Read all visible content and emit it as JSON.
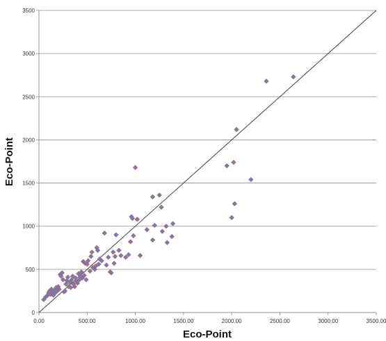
{
  "chart_data": {
    "type": "scatter",
    "xlabel": "Eco-Point",
    "ylabel": "Eco-Point",
    "xlim": [
      0,
      3500
    ],
    "ylim": [
      0,
      3500
    ],
    "x_ticks": [
      "0.00",
      "500.00",
      "1000.00",
      "1500.00",
      "2000.00",
      "2500.00",
      "3000.00",
      "3500.00"
    ],
    "y_ticks": [
      "0",
      "500",
      "1000",
      "1500",
      "2000",
      "2500",
      "3000",
      "3500"
    ],
    "grid": "horizontal",
    "legend": "none",
    "reference_line": {
      "from": [
        0,
        0
      ],
      "to": [
        3500,
        3500
      ]
    },
    "marker_color": "#7b7ba8",
    "marker_stroke": "#c05050",
    "line_color": "#404040",
    "points": [
      [
        50,
        150
      ],
      [
        70,
        180
      ],
      [
        90,
        200
      ],
      [
        100,
        230
      ],
      [
        110,
        250
      ],
      [
        120,
        210
      ],
      [
        130,
        270
      ],
      [
        140,
        240
      ],
      [
        150,
        200
      ],
      [
        160,
        260
      ],
      [
        170,
        230
      ],
      [
        180,
        290
      ],
      [
        190,
        250
      ],
      [
        200,
        300
      ],
      [
        210,
        270
      ],
      [
        220,
        440
      ],
      [
        230,
        420
      ],
      [
        240,
        460
      ],
      [
        250,
        380
      ],
      [
        260,
        240
      ],
      [
        270,
        250
      ],
      [
        280,
        330
      ],
      [
        290,
        370
      ],
      [
        300,
        410
      ],
      [
        310,
        300
      ],
      [
        320,
        350
      ],
      [
        330,
        290
      ],
      [
        340,
        380
      ],
      [
        350,
        420
      ],
      [
        360,
        330
      ],
      [
        370,
        300
      ],
      [
        380,
        400
      ],
      [
        390,
        360
      ],
      [
        400,
        340
      ],
      [
        410,
        450
      ],
      [
        420,
        380
      ],
      [
        430,
        420
      ],
      [
        440,
        470
      ],
      [
        450,
        400
      ],
      [
        460,
        590
      ],
      [
        470,
        430
      ],
      [
        480,
        570
      ],
      [
        490,
        380
      ],
      [
        500,
        560
      ],
      [
        510,
        600
      ],
      [
        530,
        480
      ],
      [
        540,
        650
      ],
      [
        550,
        700
      ],
      [
        560,
        520
      ],
      [
        580,
        500
      ],
      [
        590,
        540
      ],
      [
        600,
        750
      ],
      [
        610,
        720
      ],
      [
        620,
        560
      ],
      [
        630,
        620
      ],
      [
        650,
        600
      ],
      [
        680,
        920
      ],
      [
        700,
        550
      ],
      [
        720,
        640
      ],
      [
        740,
        470
      ],
      [
        750,
        460
      ],
      [
        770,
        700
      ],
      [
        780,
        570
      ],
      [
        790,
        650
      ],
      [
        800,
        900
      ],
      [
        830,
        720
      ],
      [
        850,
        660
      ],
      [
        900,
        640
      ],
      [
        930,
        670
      ],
      [
        950,
        820
      ],
      [
        960,
        1110
      ],
      [
        970,
        1090
      ],
      [
        980,
        890
      ],
      [
        1000,
        1680
      ],
      [
        1020,
        1080
      ],
      [
        1050,
        660
      ],
      [
        1120,
        960
      ],
      [
        1180,
        840
      ],
      [
        1180,
        1340
      ],
      [
        1200,
        1010
      ],
      [
        1250,
        1360
      ],
      [
        1270,
        1220
      ],
      [
        1280,
        940
      ],
      [
        1320,
        1000
      ],
      [
        1330,
        810
      ],
      [
        1380,
        880
      ],
      [
        1390,
        1030
      ],
      [
        1950,
        1700
      ],
      [
        2000,
        1100
      ],
      [
        2020,
        1740
      ],
      [
        2030,
        1260
      ],
      [
        2050,
        2120
      ],
      [
        2200,
        1540
      ],
      [
        2360,
        2680
      ],
      [
        2640,
        2730
      ]
    ]
  }
}
